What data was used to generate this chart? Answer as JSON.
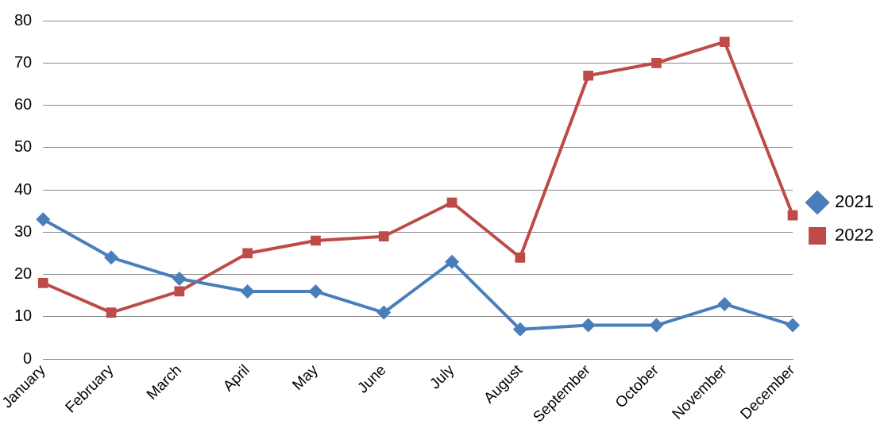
{
  "chart_data": {
    "type": "line",
    "categories": [
      "January",
      "February",
      "March",
      "April",
      "May",
      "June",
      "July",
      "August",
      "September",
      "October",
      "November",
      "December"
    ],
    "series": [
      {
        "name": "2021",
        "color": "#4a7ebb",
        "marker": "diamond",
        "values": [
          33,
          24,
          19,
          16,
          16,
          11,
          23,
          7,
          8,
          8,
          13,
          8
        ]
      },
      {
        "name": "2022",
        "color": "#be4b48",
        "marker": "square",
        "values": [
          18,
          11,
          16,
          25,
          28,
          29,
          37,
          24,
          67,
          70,
          75,
          34
        ]
      }
    ],
    "ylim": [
      0,
      80
    ],
    "yticks": [
      0,
      10,
      20,
      30,
      40,
      50,
      60,
      70,
      80
    ],
    "grid": "y",
    "legend": "right",
    "line_style": "solid"
  }
}
